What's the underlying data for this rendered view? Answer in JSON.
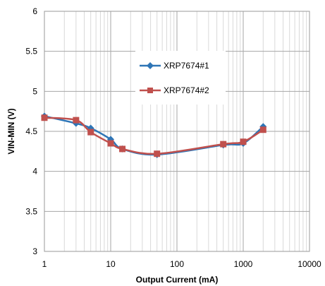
{
  "chart_data": {
    "type": "line",
    "xlabel": "Output Current (mA)",
    "ylabel": "VIN-MIN (V)",
    "x_scale": "log",
    "xlim": [
      1,
      10000
    ],
    "ylim": [
      3,
      6
    ],
    "x_ticks": [
      {
        "value": 1,
        "label": "1"
      },
      {
        "value": 10,
        "label": "10"
      },
      {
        "value": 100,
        "label": "100"
      },
      {
        "value": 1000,
        "label": "1000"
      },
      {
        "value": 10000,
        "label": "10000"
      }
    ],
    "y_ticks": [
      {
        "value": 3,
        "label": "3"
      },
      {
        "value": 3.5,
        "label": "3.5"
      },
      {
        "value": 4,
        "label": "4"
      },
      {
        "value": 4.5,
        "label": "4.5"
      },
      {
        "value": 5,
        "label": "5"
      },
      {
        "value": 5.5,
        "label": "5.5"
      },
      {
        "value": 6,
        "label": "6"
      }
    ],
    "grid": true,
    "legend_position": "upper-center",
    "series": [
      {
        "name": "XRP7674#1",
        "color": "#2e75b6",
        "marker": "diamond",
        "points": [
          [
            1,
            4.69
          ],
          [
            3,
            4.6
          ],
          [
            5,
            4.54
          ],
          [
            10,
            4.4
          ],
          [
            15,
            4.28
          ],
          [
            50,
            4.21
          ],
          [
            500,
            4.33
          ],
          [
            1000,
            4.35
          ],
          [
            2000,
            4.56
          ]
        ]
      },
      {
        "name": "XRP7674#2",
        "color": "#c0504d",
        "marker": "square",
        "points": [
          [
            1,
            4.67
          ],
          [
            3,
            4.64
          ],
          [
            5,
            4.49
          ],
          [
            10,
            4.35
          ],
          [
            15,
            4.28
          ],
          [
            50,
            4.22
          ],
          [
            500,
            4.34
          ],
          [
            1000,
            4.37
          ],
          [
            2000,
            4.52
          ]
        ]
      }
    ]
  }
}
